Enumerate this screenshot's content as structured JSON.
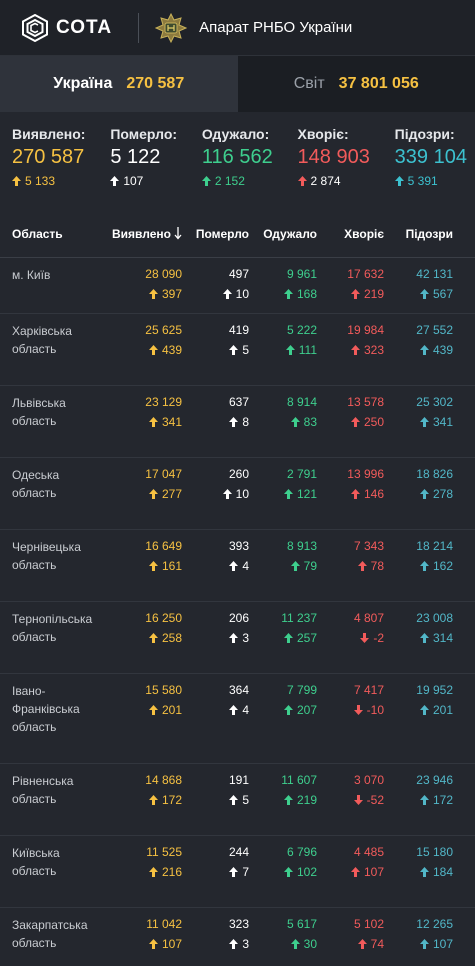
{
  "header": {
    "logo_text": "СОТА",
    "partner_text": "Апарат РНБО України"
  },
  "tabs": [
    {
      "label": "Україна",
      "value": "270 587"
    },
    {
      "label": "Світ",
      "value": "37 801 056"
    }
  ],
  "summary": [
    {
      "label": "Виявлено:",
      "value": "270 587",
      "delta": "5 133",
      "color": "#f6c142",
      "dir": "up"
    },
    {
      "label": "Померло:",
      "value": "5 122",
      "delta": "107",
      "color": "#ffffff",
      "dir": "up"
    },
    {
      "label": "Одужало:",
      "value": "116 562",
      "delta": "2 152",
      "color": "#3ecf8e",
      "dir": "up"
    },
    {
      "label": "Хворіє:",
      "value": "148 903",
      "delta": "2 874",
      "color": "#f25b5b",
      "dir": "up"
    },
    {
      "label": "Підозри:",
      "value": "339 104",
      "delta": "5 391",
      "color": "#3cc1cf",
      "dir": "up"
    }
  ],
  "table": {
    "headers": [
      "Область",
      "Виявлено",
      "Померло",
      "Одужало",
      "Хворіє",
      "Підозри"
    ],
    "sort_icon": "arrow-down-icon",
    "rows": [
      {
        "name": "м. Київ",
        "lines": 1,
        "h": 56,
        "cells": [
          [
            "28 090",
            "397",
            "up"
          ],
          [
            "497",
            "10",
            "up"
          ],
          [
            "9 961",
            "168",
            "up"
          ],
          [
            "17 632",
            "219",
            "up"
          ],
          [
            "42 131",
            "567",
            "up"
          ]
        ]
      },
      {
        "name": "Харківська область",
        "lines": 2,
        "h": 72,
        "cells": [
          [
            "25 625",
            "439",
            "up"
          ],
          [
            "419",
            "5",
            "up"
          ],
          [
            "5 222",
            "111",
            "up"
          ],
          [
            "19 984",
            "323",
            "up"
          ],
          [
            "27 552",
            "439",
            "up"
          ]
        ]
      },
      {
        "name": "Львівська область",
        "lines": 2,
        "h": 72,
        "cells": [
          [
            "23 129",
            "341",
            "up"
          ],
          [
            "637",
            "8",
            "up"
          ],
          [
            "8 914",
            "83",
            "up"
          ],
          [
            "13 578",
            "250",
            "up"
          ],
          [
            "25 302",
            "341",
            "up"
          ]
        ]
      },
      {
        "name": "Одеська область",
        "lines": 1,
        "h": 72,
        "cells": [
          [
            "17 047",
            "277",
            "up"
          ],
          [
            "260",
            "10",
            "up"
          ],
          [
            "2 791",
            "121",
            "up"
          ],
          [
            "13 996",
            "146",
            "up"
          ],
          [
            "18 826",
            "278",
            "up"
          ]
        ]
      },
      {
        "name": "Чернівецька область",
        "lines": 2,
        "h": 72,
        "cells": [
          [
            "16 649",
            "161",
            "up"
          ],
          [
            "393",
            "4",
            "up"
          ],
          [
            "8 913",
            "79",
            "up"
          ],
          [
            "7 343",
            "78",
            "up"
          ],
          [
            "18 214",
            "162",
            "up"
          ]
        ]
      },
      {
        "name": "Тернопільська область",
        "lines": 2,
        "h": 72,
        "cells": [
          [
            "16 250",
            "258",
            "up"
          ],
          [
            "206",
            "3",
            "up"
          ],
          [
            "11 237",
            "257",
            "up"
          ],
          [
            "4 807",
            "-2",
            "down"
          ],
          [
            "23 008",
            "314",
            "up"
          ]
        ]
      },
      {
        "name": "Івано-Франківська область",
        "lines": 3,
        "h": 90,
        "cells": [
          [
            "15 580",
            "201",
            "up"
          ],
          [
            "364",
            "4",
            "up"
          ],
          [
            "7 799",
            "207",
            "up"
          ],
          [
            "7 417",
            "-10",
            "down"
          ],
          [
            "19 952",
            "201",
            "up"
          ]
        ]
      },
      {
        "name": "Рівненська область",
        "lines": 2,
        "h": 72,
        "cells": [
          [
            "14 868",
            "172",
            "up"
          ],
          [
            "191",
            "5",
            "up"
          ],
          [
            "11 607",
            "219",
            "up"
          ],
          [
            "3 070",
            "-52",
            "down"
          ],
          [
            "23 946",
            "172",
            "up"
          ]
        ]
      },
      {
        "name": "Київська область",
        "lines": 2,
        "h": 72,
        "cells": [
          [
            "11 525",
            "216",
            "up"
          ],
          [
            "244",
            "7",
            "up"
          ],
          [
            "6 796",
            "102",
            "up"
          ],
          [
            "4 485",
            "107",
            "up"
          ],
          [
            "15 180",
            "184",
            "up"
          ]
        ]
      },
      {
        "name": "Закарпатська область",
        "lines": 2,
        "h": 72,
        "cells": [
          [
            "11 042",
            "107",
            "up"
          ],
          [
            "323",
            "3",
            "up"
          ],
          [
            "5 617",
            "30",
            "up"
          ],
          [
            "5 102",
            "74",
            "up"
          ],
          [
            "12 265",
            "107",
            "up"
          ]
        ]
      }
    ],
    "col_colors": [
      "#f6c142",
      "#ffffff",
      "#3ecf8e",
      "#f25b5b",
      "#52b7c8"
    ]
  }
}
